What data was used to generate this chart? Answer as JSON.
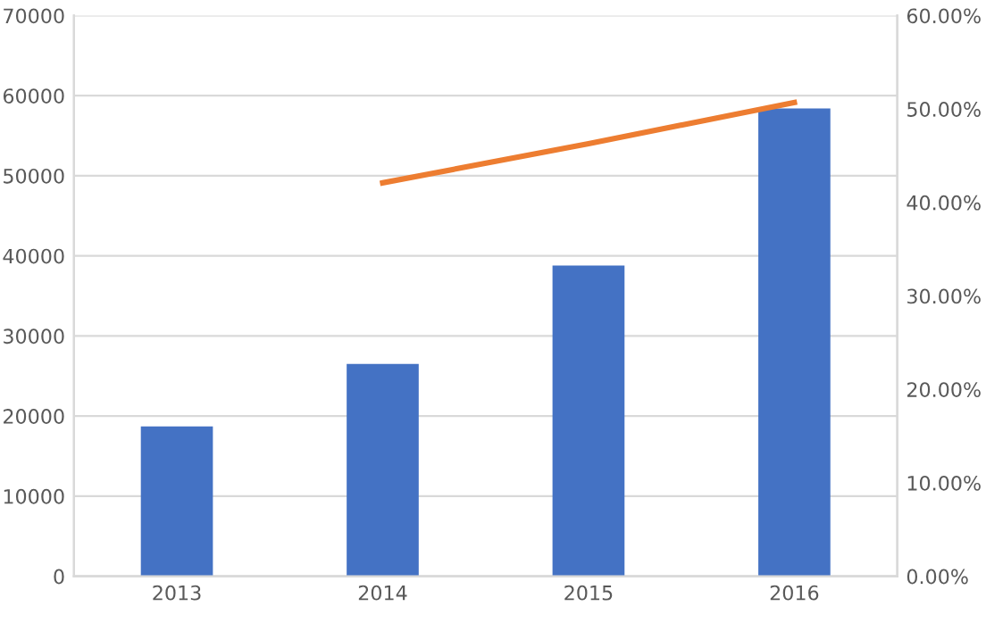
{
  "chart_data": {
    "type": "bar",
    "categories": [
      "2013",
      "2014",
      "2015",
      "2016"
    ],
    "series": [
      {
        "color": "#4472c4",
        "values": [
          18700,
          26500,
          38800,
          58400
        ]
      },
      {
        "type": "line",
        "axis": "y2",
        "color": "#ed7d31",
        "values": [
          null,
          42.1,
          46.3,
          50.7
        ]
      }
    ],
    "ylim": [
      0,
      70000
    ],
    "yticks": [
      0,
      10000,
      20000,
      30000,
      40000,
      50000,
      60000,
      70000
    ],
    "y2lim": [
      0,
      60
    ],
    "y2ticks": [
      {
        "value": 0,
        "label": "0.00%"
      },
      {
        "value": 10,
        "label": "10.00%"
      },
      {
        "value": 20,
        "label": "20.00%"
      },
      {
        "value": 30,
        "label": "30.00%"
      },
      {
        "value": 40,
        "label": "40.00%"
      },
      {
        "value": 50,
        "label": "50.00%"
      },
      {
        "value": 60,
        "label": "60.00%"
      }
    ],
    "grid": "y",
    "marker": "none",
    "line_style": "solid"
  }
}
